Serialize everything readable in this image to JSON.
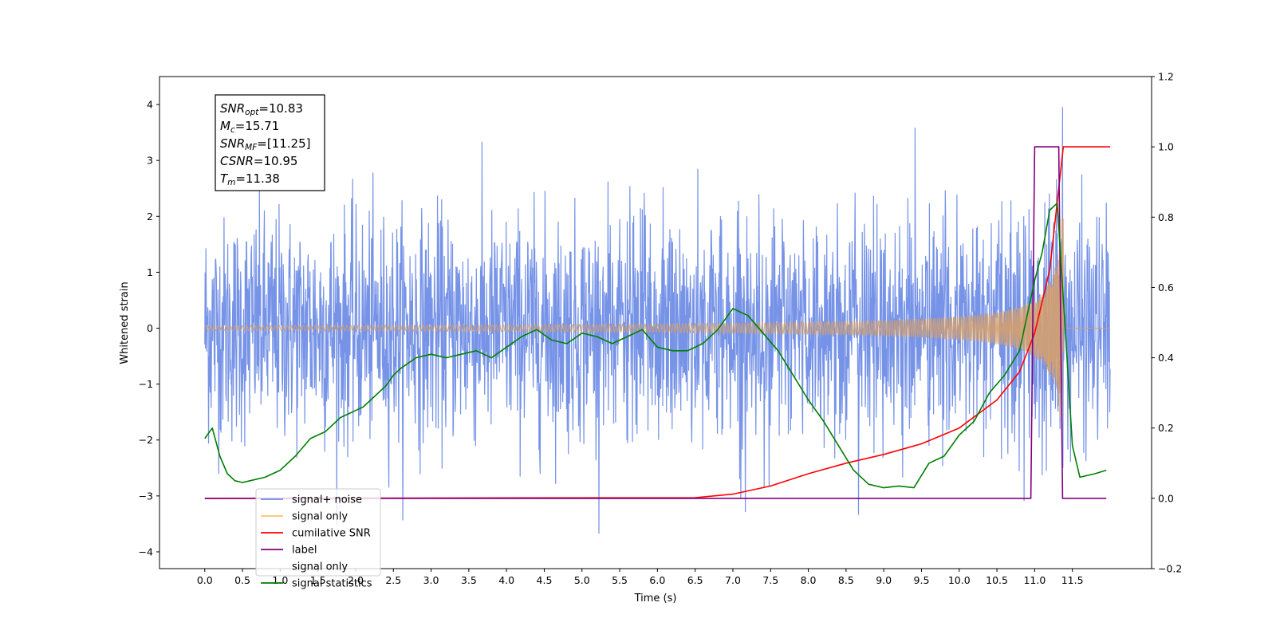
{
  "chart_data": {
    "type": "line",
    "xlabel": "Time (s)",
    "ylabel": "Whitened strain",
    "xlim": [
      -0.6,
      12.55
    ],
    "ylim": [
      -4.3,
      4.5
    ],
    "ylim_right": [
      -0.2,
      1.2
    ],
    "x_ticks": [
      "0.0",
      "0.5",
      "1.0",
      "1.5",
      "2.0",
      "2.5",
      "3.0",
      "3.5",
      "4.0",
      "4.5",
      "5.0",
      "5.5",
      "6.0",
      "6.5",
      "7.0",
      "7.5",
      "8.0",
      "8.5",
      "9.0",
      "9.5",
      "10.0",
      "10.5",
      "11.0",
      "11.5"
    ],
    "y_ticks_left": [
      "−4",
      "−3",
      "−2",
      "−1",
      "0",
      "1",
      "2",
      "3",
      "4"
    ],
    "y_ticks_right": [
      "−0.2",
      "0.0",
      "0.2",
      "0.4",
      "0.6",
      "0.8",
      "1.0",
      "1.2"
    ],
    "annotation": [
      {
        "var": "SNR",
        "sub": "opt",
        "value": "=10.83"
      },
      {
        "var": "M",
        "sub": "c",
        "value": "=15.71"
      },
      {
        "var": "SNR",
        "sub": "MF",
        "value": "=[11.25]"
      },
      {
        "var": "CSNR",
        "sub": "",
        "value": "=10.95"
      },
      {
        "var": "T",
        "sub": "m",
        "value": "=11.38"
      }
    ],
    "legend": {
      "placement": "lower-left",
      "entries": [
        {
          "label": "signal+ noise",
          "color": "#6f8de6"
        },
        {
          "label": "signal only",
          "color": "#ffbf6e"
        },
        {
          "label": "cumilative SNR",
          "color": "#ff0000"
        },
        {
          "label": "label",
          "color": "#800080"
        },
        {
          "label": "signal only",
          "color": "#ffffff"
        },
        {
          "label": "signal statistics",
          "color": "#008000"
        }
      ]
    },
    "series": [
      {
        "name": "signal+ noise",
        "axis": "left",
        "color": "#6f8de6",
        "t_range": [
          0.0,
          12.0
        ],
        "amplitude_std": 1.0,
        "max_value": 4.1,
        "min_value": -3.8
      },
      {
        "name": "signal only",
        "axis": "left",
        "color": "#d4a06e",
        "t_range": [
          0.0,
          12.0
        ],
        "chirp_end": 11.38,
        "envelope_peak": 2.6
      },
      {
        "name": "cumilative SNR",
        "axis": "right",
        "color": "#ff0000",
        "x": [
          0.0,
          6.5,
          7.0,
          7.5,
          8.0,
          8.5,
          9.0,
          9.5,
          10.0,
          10.5,
          10.8,
          11.0,
          11.2,
          11.38,
          11.5,
          12.0
        ],
        "y": [
          0.0,
          0.002,
          0.012,
          0.035,
          0.07,
          0.1,
          0.125,
          0.155,
          0.2,
          0.28,
          0.36,
          0.47,
          0.65,
          1.0,
          1.0,
          1.0
        ]
      },
      {
        "name": "label",
        "axis": "right",
        "color": "#800080",
        "x": [
          0.0,
          10.95,
          11.0,
          11.32,
          11.37,
          11.95
        ],
        "y": [
          0.0,
          0.0,
          1.0,
          1.0,
          0.0,
          0.0
        ]
      },
      {
        "name": "signal statistics",
        "axis": "right",
        "color": "#008000",
        "x": [
          0.0,
          0.1,
          0.2,
          0.3,
          0.4,
          0.5,
          0.6,
          0.8,
          1.0,
          1.2,
          1.4,
          1.5,
          1.6,
          1.8,
          1.9,
          2.0,
          2.1,
          2.2,
          2.4,
          2.5,
          2.6,
          2.8,
          3.0,
          3.2,
          3.4,
          3.6,
          3.8,
          4.0,
          4.2,
          4.4,
          4.6,
          4.8,
          5.0,
          5.2,
          5.4,
          5.6,
          5.8,
          6.0,
          6.2,
          6.4,
          6.6,
          6.8,
          7.0,
          7.1,
          7.2,
          7.4,
          7.6,
          7.8,
          8.0,
          8.2,
          8.4,
          8.6,
          8.8,
          9.0,
          9.2,
          9.4,
          9.6,
          9.8,
          10.0,
          10.2,
          10.4,
          10.6,
          10.8,
          11.0,
          11.1,
          11.2,
          11.3,
          11.4,
          11.5,
          11.6,
          11.8,
          11.95
        ],
        "y": [
          0.17,
          0.2,
          0.12,
          0.07,
          0.05,
          0.045,
          0.05,
          0.06,
          0.08,
          0.12,
          0.17,
          0.18,
          0.19,
          0.23,
          0.24,
          0.25,
          0.26,
          0.28,
          0.32,
          0.35,
          0.37,
          0.4,
          0.41,
          0.4,
          0.41,
          0.42,
          0.4,
          0.43,
          0.46,
          0.48,
          0.45,
          0.44,
          0.47,
          0.46,
          0.44,
          0.46,
          0.48,
          0.43,
          0.42,
          0.42,
          0.44,
          0.48,
          0.54,
          0.53,
          0.52,
          0.47,
          0.42,
          0.35,
          0.28,
          0.22,
          0.15,
          0.08,
          0.04,
          0.03,
          0.035,
          0.03,
          0.1,
          0.12,
          0.18,
          0.22,
          0.3,
          0.35,
          0.42,
          0.62,
          0.7,
          0.82,
          0.84,
          0.5,
          0.15,
          0.06,
          0.07,
          0.08
        ]
      }
    ]
  }
}
